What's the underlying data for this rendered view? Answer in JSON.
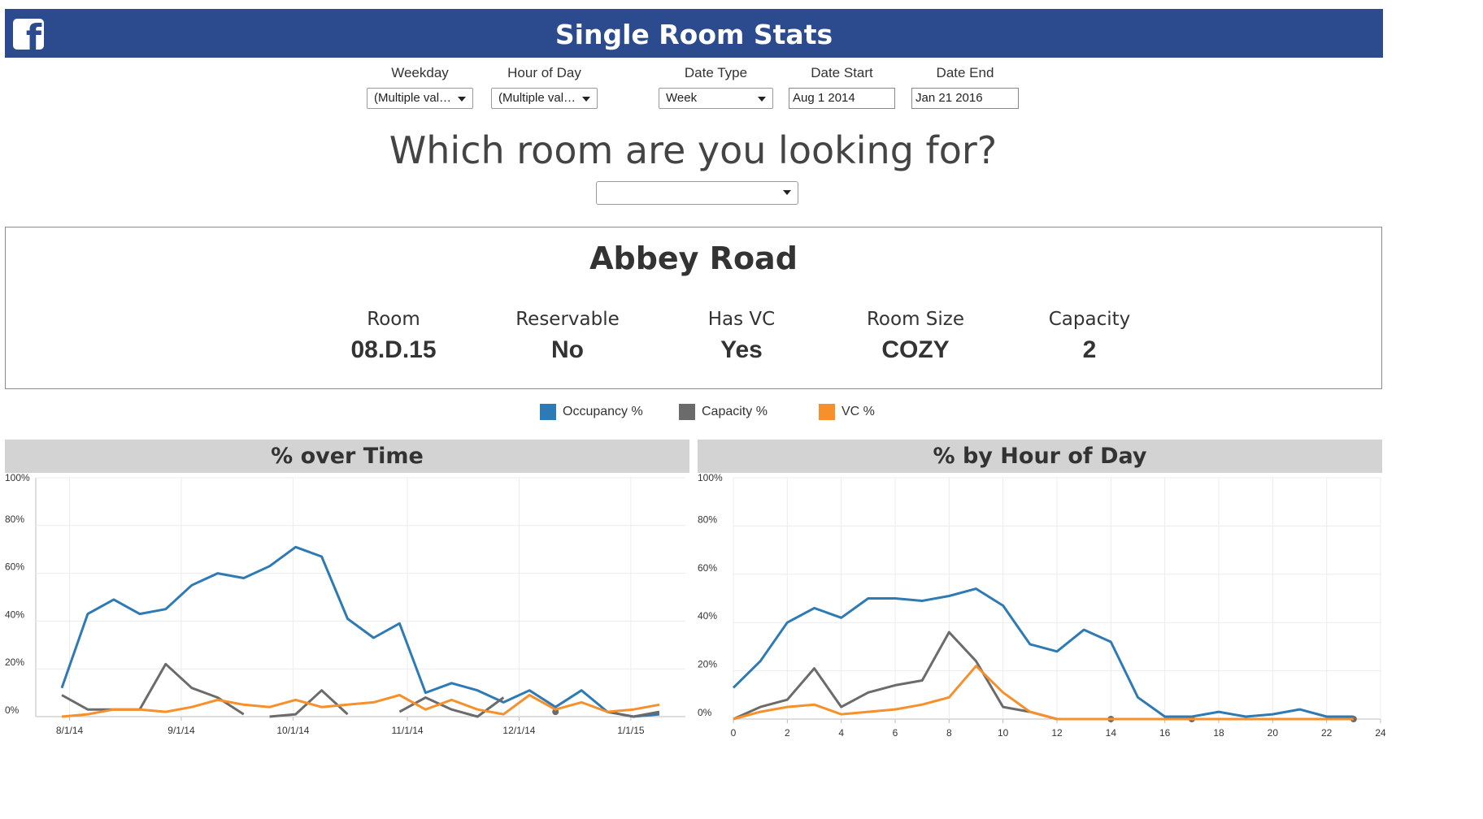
{
  "header": {
    "logo": "f",
    "title": "Single Room Stats"
  },
  "filters": [
    {
      "label": "Weekday",
      "value": "(Multiple val…"
    },
    {
      "label": "Hour of Day",
      "value": "(Multiple val…"
    },
    {
      "label": "Date Type",
      "value": "Week"
    },
    {
      "label": "Date Start",
      "value": "Aug 1 2014"
    },
    {
      "label": "Date End",
      "value": "Jan 21 2016"
    }
  ],
  "question": "Which room are you looking for?",
  "room_select": {
    "value": ""
  },
  "room": {
    "name": "Abbey Road",
    "stats": [
      {
        "label": "Room",
        "value": "08.D.15"
      },
      {
        "label": "Reservable",
        "value": "No"
      },
      {
        "label": "Has VC",
        "value": "Yes"
      },
      {
        "label": "Room Size",
        "value": "COZY"
      },
      {
        "label": "Capacity",
        "value": "2"
      }
    ]
  },
  "legend": [
    {
      "name": "Occupancy %",
      "color": "#2e7ab5"
    },
    {
      "name": "Capacity %",
      "color": "#6b6b6b"
    },
    {
      "name": "VC %",
      "color": "#f7902b"
    }
  ],
  "chart_data": [
    {
      "type": "line",
      "title": "% over Time",
      "xlabel": "",
      "ylabel": "",
      "y_ticks": [
        "0%",
        "20%",
        "40%",
        "60%",
        "80%",
        "100%"
      ],
      "ylim": [
        0,
        100
      ],
      "x_ticks": [
        "8/1/14",
        "9/1/14",
        "10/1/14",
        "11/1/14",
        "12/1/14",
        "1/1/15"
      ],
      "x_range_weeks": [
        -1,
        24
      ],
      "grid": true,
      "series": [
        {
          "name": "Occupancy %",
          "color": "#2e7ab5",
          "x": [
            0,
            1,
            2,
            3,
            4,
            5,
            6,
            7,
            8,
            9,
            10,
            11,
            12,
            13,
            14,
            15,
            16,
            17,
            18,
            19,
            20,
            21,
            22,
            23
          ],
          "values": [
            12,
            43,
            49,
            43,
            45,
            55,
            60,
            58,
            63,
            71,
            67,
            41,
            33,
            39,
            10,
            14,
            11,
            6,
            11,
            4,
            11,
            2,
            0,
            1
          ]
        },
        {
          "name": "Capacity %",
          "color": "#6b6b6b",
          "x": [
            0,
            1,
            2,
            3,
            4,
            5,
            6,
            7,
            null,
            8,
            9,
            10,
            11,
            null,
            13,
            14,
            15,
            16,
            17,
            null,
            19,
            null,
            21,
            22,
            23
          ],
          "values": [
            9,
            3,
            3,
            3,
            22,
            12,
            8,
            1,
            null,
            0,
            1,
            11,
            1,
            null,
            2,
            8,
            3,
            0,
            8,
            null,
            2,
            null,
            2,
            0,
            2
          ]
        },
        {
          "name": "VC %",
          "color": "#f7902b",
          "x": [
            0,
            1,
            2,
            3,
            4,
            5,
            6,
            7,
            8,
            9,
            10,
            11,
            12,
            13,
            14,
            15,
            16,
            17,
            18,
            19,
            20,
            21,
            22,
            23
          ],
          "values": [
            0,
            1,
            3,
            3,
            2,
            4,
            7,
            5,
            4,
            7,
            4,
            5,
            6,
            9,
            3,
            7,
            3,
            1,
            9,
            3,
            6,
            2,
            3,
            5
          ]
        }
      ]
    },
    {
      "type": "line",
      "title": "% by Hour of Day",
      "xlabel": "",
      "ylabel": "",
      "y_ticks": [
        "0%",
        "20%",
        "40%",
        "60%",
        "80%",
        "100%"
      ],
      "ylim": [
        0,
        100
      ],
      "x_ticks": [
        0,
        2,
        4,
        6,
        8,
        10,
        12,
        14,
        16,
        18,
        20,
        22,
        24
      ],
      "xlim": [
        0,
        24
      ],
      "grid": true,
      "series": [
        {
          "name": "Occupancy %",
          "color": "#2e7ab5",
          "x": [
            0,
            1,
            2,
            3,
            4,
            5,
            6,
            7,
            8,
            9,
            10,
            11,
            12,
            13,
            14,
            15,
            16,
            17,
            18,
            19,
            20,
            21,
            22,
            23
          ],
          "values": [
            13,
            24,
            40,
            46,
            42,
            50,
            50,
            49,
            51,
            54,
            47,
            31,
            28,
            37,
            32,
            9,
            1,
            1,
            3,
            1,
            2,
            4,
            1,
            1
          ]
        },
        {
          "name": "Capacity %",
          "color": "#6b6b6b",
          "x": [
            0,
            1,
            2,
            3,
            4,
            5,
            6,
            7,
            8,
            9,
            10,
            11,
            12,
            null,
            14,
            null,
            17,
            null,
            23
          ],
          "values": [
            0,
            5,
            8,
            21,
            5,
            11,
            14,
            16,
            36,
            24,
            5,
            3,
            0,
            null,
            0,
            null,
            0,
            null,
            0
          ]
        },
        {
          "name": "VC %",
          "color": "#f7902b",
          "x": [
            0,
            1,
            2,
            3,
            4,
            5,
            6,
            7,
            8,
            9,
            10,
            11,
            12,
            13,
            14,
            15,
            16,
            17,
            18,
            19,
            20,
            21,
            22,
            23
          ],
          "values": [
            0,
            3,
            5,
            6,
            2,
            3,
            4,
            6,
            9,
            22,
            11,
            3,
            0,
            0,
            0,
            0,
            0,
            0,
            0,
            0,
            0,
            0,
            0,
            0
          ]
        }
      ]
    }
  ]
}
